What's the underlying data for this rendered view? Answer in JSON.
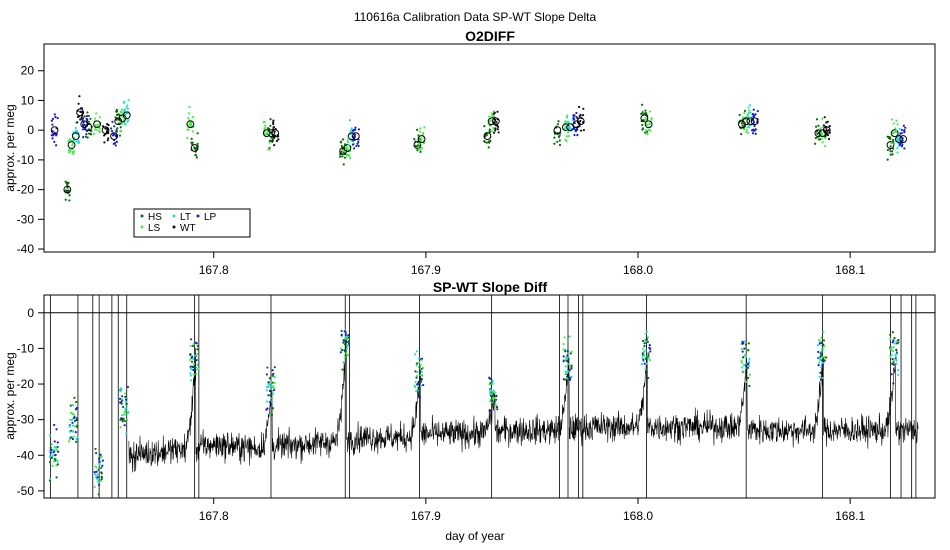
{
  "figure": {
    "title": "110616a   Calibration Data SP-WT Slope Delta",
    "xlabel": "day of year"
  },
  "colors": {
    "HS": "#0a6a0a",
    "LS": "#44ee44",
    "LT": "#22dddd",
    "WT": "#111111",
    "LP": "#1a1acc",
    "axis": "#000000",
    "trace": "#000000"
  },
  "chart_data": [
    {
      "type": "scatter",
      "title": "O2DIFF",
      "ylabel": "approx. per meg",
      "xlim": [
        167.72,
        168.14
      ],
      "ylim": [
        -41,
        29
      ],
      "x_ticks": [
        167.8,
        167.9,
        168.0,
        168.1
      ],
      "x_tick_labels": [
        "167.8",
        "167.9",
        "168.0",
        "168.1"
      ],
      "y_ticks": [
        -40,
        -30,
        -20,
        -10,
        0,
        10,
        20
      ],
      "y_tick_labels": [
        "-40",
        "-30",
        "-20",
        "-10",
        "0",
        "10",
        "20"
      ],
      "legend": {
        "position": "bottom-left",
        "entries": [
          {
            "label": "HS",
            "series": "HS"
          },
          {
            "label": "LT",
            "series": "LT"
          },
          {
            "label": "LP",
            "series": "LP"
          },
          {
            "label": "LS",
            "series": "LS"
          },
          {
            "label": "WT",
            "series": "WT"
          }
        ]
      },
      "series": [
        {
          "name": "HS",
          "points": [
            [
              167.731,
              -20
            ],
            [
              167.741,
              1
            ],
            [
              167.755,
              3
            ],
            [
              167.791,
              -6
            ],
            [
              167.827,
              -1
            ],
            [
              167.861,
              -7
            ],
            [
              167.896,
              -5
            ],
            [
              167.929,
              -2
            ],
            [
              167.962,
              0
            ],
            [
              168.003,
              4
            ],
            [
              168.049,
              2
            ],
            [
              168.085,
              -1
            ],
            [
              168.119,
              -5
            ]
          ]
        },
        {
          "name": "LS",
          "points": [
            [
              167.733,
              -5
            ],
            [
              167.745,
              2
            ],
            [
              167.757,
              4
            ],
            [
              167.789,
              2
            ],
            [
              167.825,
              -1
            ],
            [
              167.863,
              -6
            ],
            [
              167.898,
              -3
            ],
            [
              167.931,
              3
            ],
            [
              167.966,
              1
            ],
            [
              168.005,
              2
            ],
            [
              168.051,
              3
            ],
            [
              168.087,
              -1
            ],
            [
              168.121,
              -1
            ]
          ]
        },
        {
          "name": "LT",
          "points": [
            [
              167.735,
              -2
            ],
            [
              167.759,
              5
            ],
            [
              167.865,
              -2
            ],
            [
              167.968,
              1
            ],
            [
              168.053,
              3
            ],
            [
              168.123,
              -3
            ]
          ]
        },
        {
          "name": "WT",
          "points": [
            [
              167.737,
              6
            ],
            [
              167.749,
              0
            ],
            [
              167.829,
              -1
            ],
            [
              167.933,
              3
            ],
            [
              167.973,
              3
            ],
            [
              168.089,
              0
            ]
          ]
        },
        {
          "name": "LP",
          "points": [
            [
              167.725,
              0
            ],
            [
              167.739,
              2
            ],
            [
              167.753,
              -2
            ],
            [
              167.867,
              -2
            ],
            [
              167.971,
              2
            ],
            [
              168.055,
              3
            ],
            [
              168.125,
              -3
            ]
          ]
        }
      ]
    },
    {
      "type": "line",
      "title": "SP-WT Slope Diff",
      "ylabel": "approx. per meg",
      "xlim": [
        167.72,
        168.14
      ],
      "ylim": [
        -52,
        5
      ],
      "x_ticks": [
        167.8,
        167.9,
        168.0,
        168.1
      ],
      "x_tick_labels": [
        "167.8",
        "167.9",
        "168.0",
        "168.1"
      ],
      "y_ticks": [
        -50,
        -40,
        -30,
        -20,
        -10,
        0
      ],
      "y_tick_labels": [
        "-50",
        "-40",
        "-30",
        "-20",
        "-10",
        "0"
      ],
      "reference_line_y": 0,
      "series": [
        {
          "name": "SP-WT",
          "color": "trace",
          "points": [
            [
              167.76,
              -40
            ],
            [
              167.79,
              -38
            ],
            [
              167.8,
              -37
            ],
            [
              167.82,
              -38
            ],
            [
              167.84,
              -37
            ],
            [
              167.86,
              -36
            ],
            [
              167.87,
              -35
            ],
            [
              167.89,
              -35
            ],
            [
              167.9,
              -34
            ],
            [
              167.92,
              -34
            ],
            [
              167.94,
              -33
            ],
            [
              167.96,
              -33
            ],
            [
              167.98,
              -32
            ],
            [
              168.0,
              -32
            ],
            [
              168.02,
              -32
            ],
            [
              168.04,
              -32
            ],
            [
              168.06,
              -33
            ],
            [
              168.08,
              -33
            ],
            [
              168.1,
              -33
            ],
            [
              168.12,
              -33
            ]
          ]
        },
        {
          "name": "calibration",
          "points": [
            [
              167.724,
              -40
            ],
            [
              167.733,
              -31
            ],
            [
              167.745,
              -44
            ],
            [
              167.757,
              -27
            ],
            [
              167.79,
              -13
            ],
            [
              167.826,
              -22
            ],
            [
              167.861,
              -8
            ],
            [
              167.896,
              -17
            ],
            [
              167.931,
              -23
            ],
            [
              167.966,
              -14
            ],
            [
              168.003,
              -11
            ],
            [
              168.05,
              -13
            ],
            [
              168.086,
              -12
            ],
            [
              168.12,
              -12
            ]
          ]
        }
      ]
    }
  ]
}
